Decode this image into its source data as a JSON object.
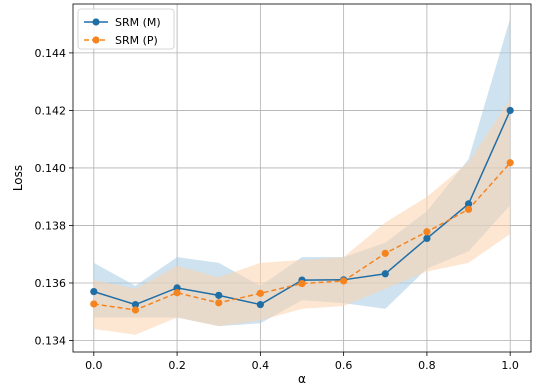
{
  "chart_data": {
    "type": "line",
    "xlabel": "α",
    "ylabel": "Loss",
    "xlim": [
      -0.05,
      1.05
    ],
    "ylim": [
      0.1336,
      0.1457
    ],
    "xticks": [
      0.0,
      0.2,
      0.4,
      0.6,
      0.8,
      1.0
    ],
    "xtick_labels": [
      "0.0",
      "0.2",
      "0.4",
      "0.6",
      "0.8",
      "1.0"
    ],
    "yticks": [
      0.134,
      0.136,
      0.138,
      0.14,
      0.142,
      0.144
    ],
    "ytick_labels": [
      "0.134",
      "0.136",
      "0.138",
      "0.140",
      "0.142",
      "0.144"
    ],
    "grid": true,
    "legend_position": "top-left",
    "x": [
      0.0,
      0.1,
      0.2,
      0.3,
      0.4,
      0.5,
      0.6,
      0.7,
      0.8,
      0.9,
      1.0
    ],
    "series": [
      {
        "name": "SRM (M)",
        "color": "#1f6ea6",
        "band_color": "#a6cbe2",
        "line_style": "solid",
        "values": [
          0.1357,
          0.13525,
          0.13583,
          0.13557,
          0.13525,
          0.1361,
          0.13611,
          0.13632,
          0.13755,
          0.13875,
          0.142
        ],
        "lower": [
          0.1348,
          0.1348,
          0.1348,
          0.1345,
          0.1346,
          0.1354,
          0.1353,
          0.1351,
          0.1365,
          0.1371,
          0.1387
        ],
        "upper": [
          0.1367,
          0.1359,
          0.1369,
          0.1367,
          0.1359,
          0.1369,
          0.1369,
          0.1374,
          0.1385,
          0.1403,
          0.1452
        ]
      },
      {
        "name": "SRM (P)",
        "color": "#f5841f",
        "band_color": "#fdd3ad",
        "line_style": "dashed",
        "values": [
          0.13527,
          0.13506,
          0.13566,
          0.13531,
          0.13564,
          0.13598,
          0.13607,
          0.13703,
          0.13778,
          0.13856,
          0.14018
        ],
        "lower": [
          0.1344,
          0.1342,
          0.1348,
          0.1345,
          0.1347,
          0.1351,
          0.1352,
          0.1358,
          0.1364,
          0.1367,
          0.1377
        ],
        "upper": [
          0.1361,
          0.1358,
          0.1366,
          0.1362,
          0.1367,
          0.1368,
          0.1369,
          0.1381,
          0.139,
          0.1402,
          0.1424
        ]
      }
    ]
  }
}
